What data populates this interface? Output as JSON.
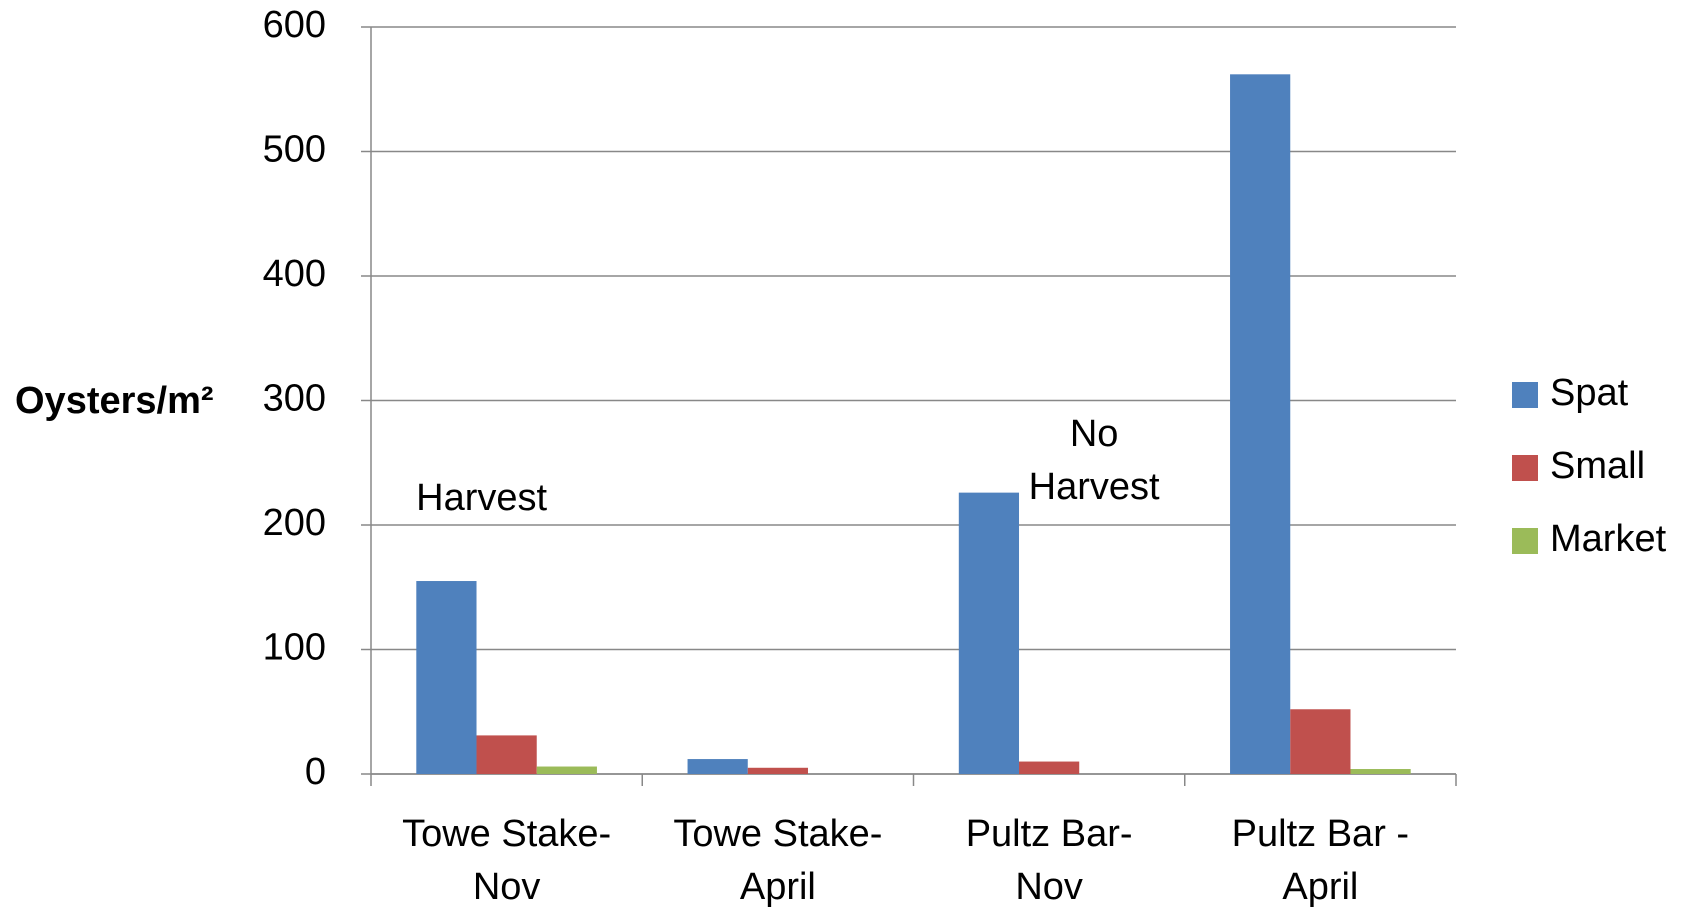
{
  "chart_data": {
    "type": "bar",
    "y_label": "Oysters/m²",
    "categories": [
      "Towe Stake-\nNov",
      "Towe Stake-\nApril",
      "Pultz Bar-\nNov",
      "Pultz Bar -\nApril"
    ],
    "series": [
      {
        "name": "Spat",
        "color": "#4f81bd",
        "values": [
          155,
          12,
          226,
          562
        ]
      },
      {
        "name": "Small",
        "color": "#c0504d",
        "values": [
          31,
          5,
          10,
          52
        ]
      },
      {
        "name": "Market",
        "color": "#9bbb59",
        "values": [
          6,
          0,
          0,
          4
        ]
      }
    ],
    "annotations": [
      {
        "text": "Harvest",
        "category": 0
      },
      {
        "text": "No\nHarvest",
        "category": 2
      }
    ],
    "ylim": [
      0,
      600
    ],
    "yticks": [
      0,
      100,
      200,
      300,
      400,
      500,
      600
    ],
    "grid": true,
    "legend": "right"
  }
}
